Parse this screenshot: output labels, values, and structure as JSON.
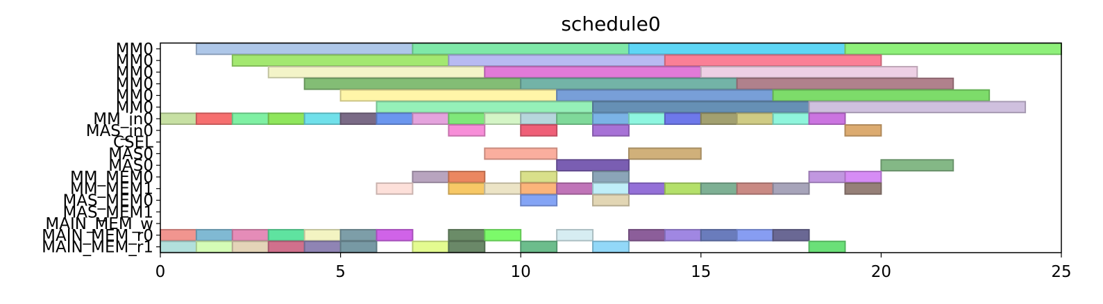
{
  "chart_data": {
    "type": "gantt",
    "title": "schedule0",
    "xlim": [
      0,
      25
    ],
    "x_ticks": [
      0,
      5,
      10,
      15,
      20,
      25
    ],
    "rows": [
      "MM0",
      "MM0",
      "MM0",
      "MM0",
      "MM0",
      "MM0",
      "MM_in0",
      "MAS_in0",
      "CSEL",
      "MAS0",
      "MAS0",
      "MM_MEM0",
      "MM_MEM1",
      "MAS_MEM0",
      "MAS_MEM1",
      "MAIN_MEM_w",
      "MAIN_MEM_r0",
      "MAIN_MEM_r1"
    ],
    "row_labels": [
      "MM0",
      "MM0",
      "MM0",
      "MM0",
      "MM0",
      "MM0",
      "MM_in0",
      "MAS_in0",
      "CSEL",
      "MAS0",
      "MAS0",
      "MM_MEM0",
      "MM_MEM1",
      "MAS_MEM0",
      "MAS_MEM1",
      "MAIN_MEM_w",
      "MAIN_MEM_r0",
      "MAIN_MEM_r1"
    ],
    "tasks": [
      {
        "row": 0,
        "start": 1,
        "end": 7,
        "color": "#aec7e8"
      },
      {
        "row": 0,
        "start": 7,
        "end": 13,
        "color": "#7fe8a8"
      },
      {
        "row": 0,
        "start": 13,
        "end": 19,
        "color": "#5ed6f5"
      },
      {
        "row": 0,
        "start": 19,
        "end": 25,
        "color": "#8ef07a"
      },
      {
        "row": 1,
        "start": 2,
        "end": 8,
        "color": "#a3e870"
      },
      {
        "row": 1,
        "start": 8,
        "end": 14,
        "color": "#b8baf2"
      },
      {
        "row": 1,
        "start": 14,
        "end": 20,
        "color": "#fa7f96"
      },
      {
        "row": 2,
        "start": 3,
        "end": 9,
        "color": "#f3f4c8"
      },
      {
        "row": 2,
        "start": 9,
        "end": 15,
        "color": "#e17ad8"
      },
      {
        "row": 2,
        "start": 15,
        "end": 21,
        "color": "#edcfe4"
      },
      {
        "row": 3,
        "start": 4,
        "end": 10,
        "color": "#83bd75"
      },
      {
        "row": 3,
        "start": 10,
        "end": 16,
        "color": "#73b3a7"
      },
      {
        "row": 3,
        "start": 16,
        "end": 22,
        "color": "#b0818c"
      },
      {
        "row": 4,
        "start": 5,
        "end": 11,
        "color": "#fff5a8"
      },
      {
        "row": 4,
        "start": 11,
        "end": 17,
        "color": "#789fd8"
      },
      {
        "row": 4,
        "start": 17,
        "end": 23,
        "color": "#7ddc6a"
      },
      {
        "row": 5,
        "start": 6,
        "end": 12,
        "color": "#95f0b8"
      },
      {
        "row": 5,
        "start": 12,
        "end": 18,
        "color": "#6690b5"
      },
      {
        "row": 5,
        "start": 18,
        "end": 24,
        "color": "#cfc0de"
      },
      {
        "row": 6,
        "start": 0,
        "end": 1,
        "color": "#c7e0a3"
      },
      {
        "row": 6,
        "start": 1,
        "end": 2,
        "color": "#f66f6f"
      },
      {
        "row": 6,
        "start": 2,
        "end": 3,
        "color": "#7ff0a3"
      },
      {
        "row": 6,
        "start": 3,
        "end": 4,
        "color": "#8fe65c"
      },
      {
        "row": 6,
        "start": 4,
        "end": 5,
        "color": "#70e0ea"
      },
      {
        "row": 6,
        "start": 5,
        "end": 6,
        "color": "#7a6a86"
      },
      {
        "row": 6,
        "start": 6,
        "end": 7,
        "color": "#6b96ee"
      },
      {
        "row": 6,
        "start": 7,
        "end": 8,
        "color": "#e4a3dd"
      },
      {
        "row": 6,
        "start": 8,
        "end": 9,
        "color": "#7fe87a"
      },
      {
        "row": 6,
        "start": 9,
        "end": 10,
        "color": "#d4f5c6"
      },
      {
        "row": 6,
        "start": 10,
        "end": 11,
        "color": "#b6d6dc"
      },
      {
        "row": 6,
        "start": 11,
        "end": 12,
        "color": "#7fd99a"
      },
      {
        "row": 6,
        "start": 12,
        "end": 13,
        "color": "#7bb3e6"
      },
      {
        "row": 6,
        "start": 13,
        "end": 14,
        "color": "#8ef6e0"
      },
      {
        "row": 6,
        "start": 14,
        "end": 15,
        "color": "#6e78ea"
      },
      {
        "row": 6,
        "start": 15,
        "end": 16,
        "color": "#a2a070"
      },
      {
        "row": 6,
        "start": 16,
        "end": 17,
        "color": "#cfcb84"
      },
      {
        "row": 6,
        "start": 17,
        "end": 18,
        "color": "#8ff5dc"
      },
      {
        "row": 6,
        "start": 18,
        "end": 19,
        "color": "#cb74e0"
      },
      {
        "row": 7,
        "start": 8,
        "end": 9,
        "color": "#f78ed8"
      },
      {
        "row": 7,
        "start": 10,
        "end": 11,
        "color": "#ef5f78"
      },
      {
        "row": 7,
        "start": 12,
        "end": 13,
        "color": "#a772d6"
      },
      {
        "row": 7,
        "start": 19,
        "end": 20,
        "color": "#dcab70"
      },
      {
        "row": 9,
        "start": 9,
        "end": 11,
        "color": "#faae9e"
      },
      {
        "row": 9,
        "start": 13,
        "end": 15,
        "color": "#d0b07a"
      },
      {
        "row": 10,
        "start": 11,
        "end": 13,
        "color": "#7a5eb2"
      },
      {
        "row": 10,
        "start": 20,
        "end": 22,
        "color": "#84b886"
      },
      {
        "row": 11,
        "start": 7,
        "end": 8,
        "color": "#b8a4bf"
      },
      {
        "row": 11,
        "start": 8,
        "end": 9,
        "color": "#eb8760"
      },
      {
        "row": 11,
        "start": 10,
        "end": 11,
        "color": "#d9e08a"
      },
      {
        "row": 11,
        "start": 12,
        "end": 13,
        "color": "#8ba5b8"
      },
      {
        "row": 11,
        "start": 18,
        "end": 19,
        "color": "#c197e0"
      },
      {
        "row": 11,
        "start": 19,
        "end": 20,
        "color": "#d68cf5"
      },
      {
        "row": 12,
        "start": 6,
        "end": 7,
        "color": "#fde0da"
      },
      {
        "row": 12,
        "start": 8,
        "end": 9,
        "color": "#f7c866"
      },
      {
        "row": 12,
        "start": 9,
        "end": 10,
        "color": "#ece4c6"
      },
      {
        "row": 12,
        "start": 10,
        "end": 11,
        "color": "#fbb47a"
      },
      {
        "row": 12,
        "start": 11,
        "end": 12,
        "color": "#c074b8"
      },
      {
        "row": 12,
        "start": 12,
        "end": 13,
        "color": "#bfeef8"
      },
      {
        "row": 12,
        "start": 13,
        "end": 14,
        "color": "#9470d8"
      },
      {
        "row": 12,
        "start": 14,
        "end": 15,
        "color": "#b4e06a"
      },
      {
        "row": 12,
        "start": 15,
        "end": 16,
        "color": "#7eb094"
      },
      {
        "row": 12,
        "start": 16,
        "end": 17,
        "color": "#c98a84"
      },
      {
        "row": 12,
        "start": 17,
        "end": 18,
        "color": "#a7a4ba"
      },
      {
        "row": 12,
        "start": 19,
        "end": 20,
        "color": "#968078"
      },
      {
        "row": 13,
        "start": 10,
        "end": 11,
        "color": "#84a4f5"
      },
      {
        "row": 13,
        "start": 12,
        "end": 13,
        "color": "#e2d6b4"
      },
      {
        "row": 16,
        "start": 0,
        "end": 1,
        "color": "#f1958f"
      },
      {
        "row": 16,
        "start": 1,
        "end": 2,
        "color": "#80b9d3"
      },
      {
        "row": 16,
        "start": 2,
        "end": 3,
        "color": "#e58cb8"
      },
      {
        "row": 16,
        "start": 3,
        "end": 4,
        "color": "#5fe3a0"
      },
      {
        "row": 16,
        "start": 4,
        "end": 5,
        "color": "#f3f4c2"
      },
      {
        "row": 16,
        "start": 5,
        "end": 6,
        "color": "#7d9ea8"
      },
      {
        "row": 16,
        "start": 6,
        "end": 7,
        "color": "#d063e8"
      },
      {
        "row": 16,
        "start": 8,
        "end": 9,
        "color": "#6b8c68"
      },
      {
        "row": 16,
        "start": 9,
        "end": 10,
        "color": "#7cfa6a"
      },
      {
        "row": 16,
        "start": 11,
        "end": 12,
        "color": "#d6edf2"
      },
      {
        "row": 16,
        "start": 13,
        "end": 14,
        "color": "#8c5e9a"
      },
      {
        "row": 16,
        "start": 14,
        "end": 15,
        "color": "#a087e2"
      },
      {
        "row": 16,
        "start": 15,
        "end": 16,
        "color": "#6a7cbc"
      },
      {
        "row": 16,
        "start": 16,
        "end": 17,
        "color": "#879df2"
      },
      {
        "row": 16,
        "start": 17,
        "end": 18,
        "color": "#6a6894"
      },
      {
        "row": 17,
        "start": 0,
        "end": 1,
        "color": "#b2e0dc"
      },
      {
        "row": 17,
        "start": 1,
        "end": 2,
        "color": "#d4fcb6"
      },
      {
        "row": 17,
        "start": 2,
        "end": 3,
        "color": "#e4d4b8"
      },
      {
        "row": 17,
        "start": 3,
        "end": 4,
        "color": "#d0708c"
      },
      {
        "row": 17,
        "start": 4,
        "end": 5,
        "color": "#8f84b4"
      },
      {
        "row": 17,
        "start": 5,
        "end": 6,
        "color": "#7799a4"
      },
      {
        "row": 17,
        "start": 7,
        "end": 8,
        "color": "#e4fb90"
      },
      {
        "row": 17,
        "start": 8,
        "end": 9,
        "color": "#6a8868"
      },
      {
        "row": 17,
        "start": 10,
        "end": 11,
        "color": "#6cbd8c"
      },
      {
        "row": 17,
        "start": 12,
        "end": 13,
        "color": "#92d8f8"
      },
      {
        "row": 17,
        "start": 18,
        "end": 19,
        "color": "#6ae078"
      }
    ]
  }
}
